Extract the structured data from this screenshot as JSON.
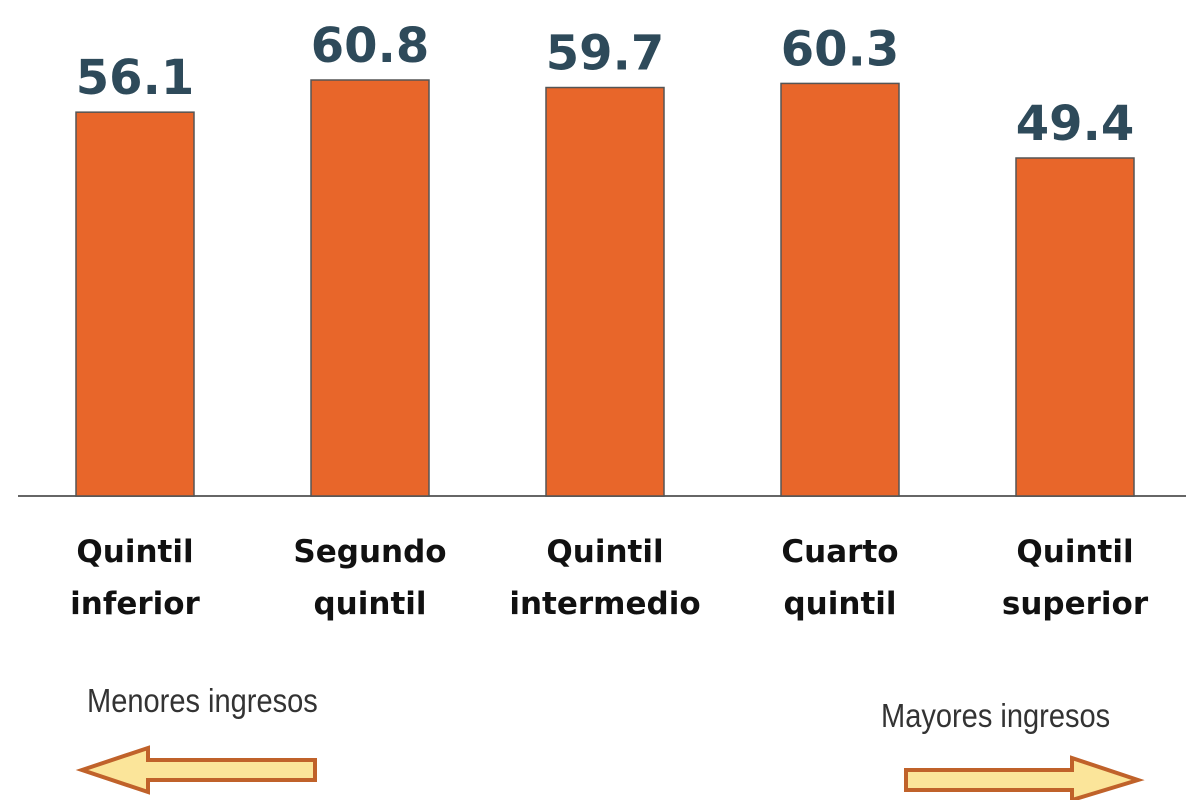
{
  "chart_data": {
    "type": "bar",
    "categories": [
      "Quintil inferior",
      "Segundo quintil",
      "Quintil intermedio",
      "Cuarto quintil",
      "Quintil superior"
    ],
    "values": [
      56.1,
      60.8,
      59.7,
      60.3,
      49.4
    ],
    "color": "#e8662a",
    "annotations": [
      "Menores ingresos",
      "Mayores ingresos"
    ]
  }
}
